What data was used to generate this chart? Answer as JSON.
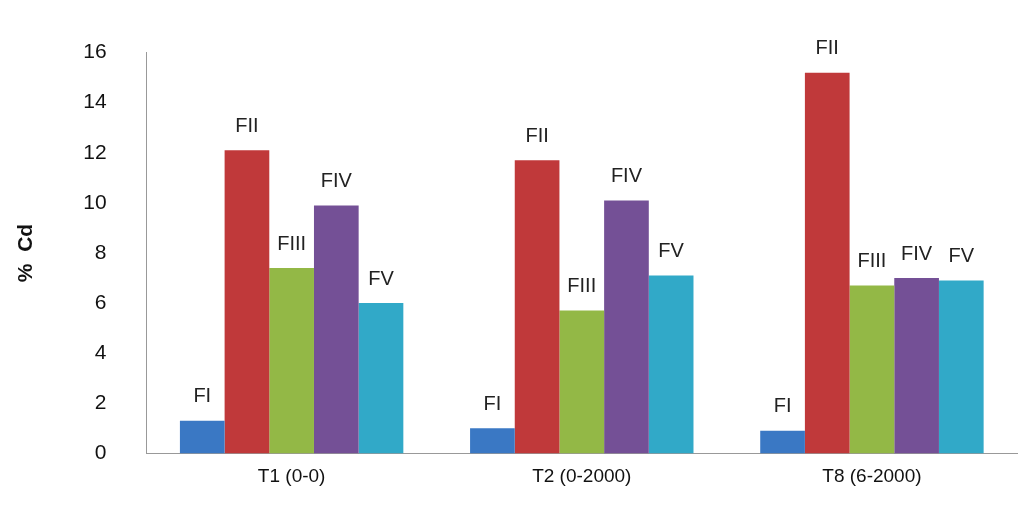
{
  "chart_data": {
    "type": "bar",
    "ylabel": "%  Cd",
    "categories": [
      "T1 (0-0)",
      "T2 (0-2000)",
      "T8 (6-2000)"
    ],
    "series": [
      {
        "name": "FI",
        "color": "#3a78c4",
        "values": [
          1.3,
          1.0,
          0.9
        ]
      },
      {
        "name": "FII",
        "color": "#c0393a",
        "values": [
          12.1,
          11.7,
          15.2
        ]
      },
      {
        "name": "FIII",
        "color": "#93b846",
        "values": [
          7.4,
          5.7,
          6.7
        ]
      },
      {
        "name": "FIV",
        "color": "#745096",
        "values": [
          9.9,
          10.1,
          7.0
        ]
      },
      {
        "name": "FV",
        "color": "#31a9c8",
        "values": [
          6.0,
          7.1,
          6.9
        ]
      }
    ],
    "ylim": [
      0,
      16
    ],
    "yticks": [
      0,
      2,
      4,
      6,
      8,
      10,
      12,
      14,
      16
    ],
    "grid": false,
    "legend": false
  }
}
